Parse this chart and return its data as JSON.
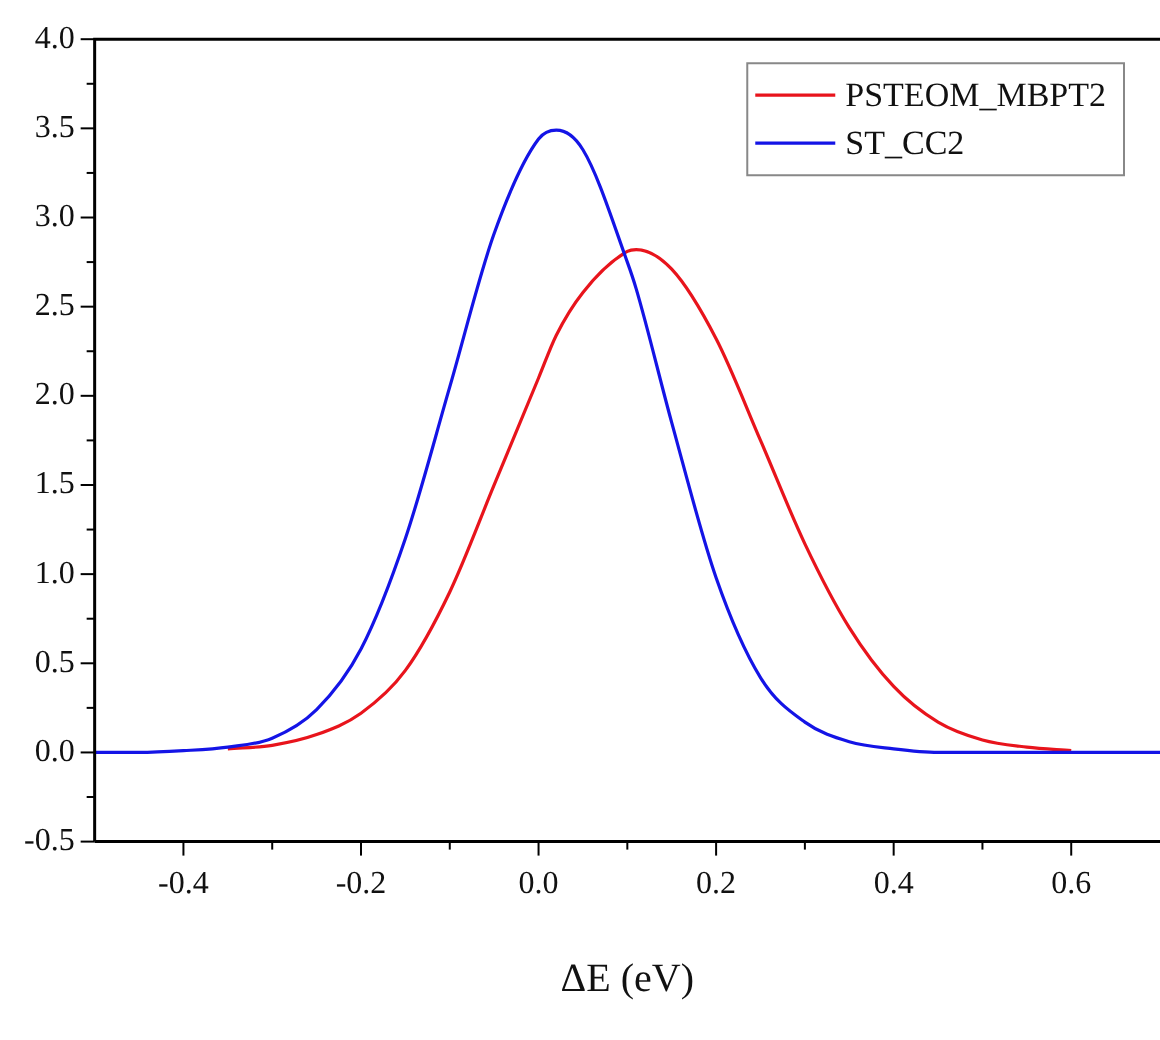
{
  "chart_data": {
    "type": "line",
    "xlabel": "ΔE (eV)",
    "x": [
      -0.5,
      -0.45,
      -0.4,
      -0.35,
      -0.3,
      -0.25,
      -0.2,
      -0.15,
      -0.1,
      -0.05,
      0,
      0.02,
      0.05,
      0.1,
      0.11,
      0.15,
      0.2,
      0.25,
      0.3,
      0.35,
      0.4,
      0.45,
      0.5,
      0.55,
      0.6,
      0.65,
      0.7
    ],
    "series": [
      {
        "name": "PSTEOM_MBPT2",
        "color": "#e8141c",
        "values": [
          null,
          null,
          null,
          0.02,
          0.04,
          0.1,
          0.22,
          0.46,
          0.9,
          1.5,
          2.1,
          2.34,
          2.58,
          2.81,
          2.82,
          2.71,
          2.32,
          1.75,
          1.17,
          0.7,
          0.37,
          0.17,
          0.07,
          0.03,
          0.01,
          null,
          null
        ]
      },
      {
        "name": "ST_CC2",
        "color": "#1414e6",
        "values": [
          0,
          0,
          0.01,
          0.03,
          0.08,
          0.24,
          0.58,
          1.2,
          2.05,
          2.91,
          3.44,
          3.49,
          3.38,
          2.75,
          2.6,
          1.85,
          0.98,
          0.42,
          0.17,
          0.06,
          0.02,
          0,
          0,
          0,
          0,
          0,
          0
        ]
      }
    ],
    "xlim": [
      -0.5,
      0.7
    ],
    "xticks": [
      -0.4,
      {
        "value": -0.3,
        "label": null
      },
      -0.2,
      {
        "value": -0.1,
        "label": null
      },
      {
        "value": 0,
        "label": "0.0"
      },
      {
        "value": 0.1,
        "label": null
      },
      0.2,
      {
        "value": 0.3,
        "label": null
      },
      0.4,
      {
        "value": 0.5,
        "label": null
      },
      0.6
    ],
    "ylim": [
      -0.5,
      4.0
    ],
    "yticks": [
      -0.5,
      {
        "value": -0.25,
        "label": null
      },
      {
        "value": 0,
        "label": "0.0"
      },
      {
        "value": 0.25,
        "label": null
      },
      0.5,
      {
        "value": 0.75,
        "label": null
      },
      {
        "value": 1,
        "label": "1.0"
      },
      {
        "value": 1.25,
        "label": null
      },
      1.5,
      {
        "value": 1.75,
        "label": null
      },
      {
        "value": 2,
        "label": "2.0"
      },
      {
        "value": 2.25,
        "label": null
      },
      2.5,
      {
        "value": 2.75,
        "label": null
      },
      {
        "value": 3,
        "label": "3.0"
      },
      {
        "value": 3.25,
        "label": null
      },
      3.5,
      {
        "value": 3.75,
        "label": null
      },
      {
        "value": 4,
        "label": "4.0"
      }
    ],
    "grid": false,
    "legend": "top right",
    "marker": "none",
    "line_style": "solid"
  }
}
